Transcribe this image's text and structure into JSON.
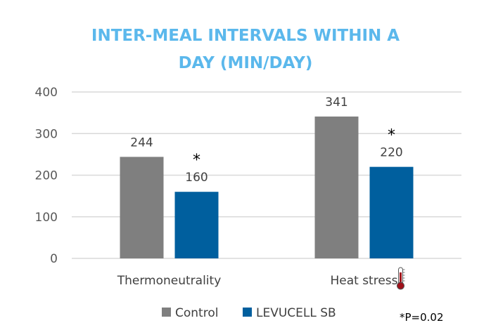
{
  "chart_data": {
    "type": "bar",
    "title_lines": [
      "INTER-MEAL INTERVALS WITHIN A",
      "DAY (MIN/DAY)"
    ],
    "categories": [
      "Thermoneutrality",
      "Heat stress"
    ],
    "series": [
      {
        "name": "Control",
        "values": [
          244,
          341
        ],
        "color": "#7f7f7f"
      },
      {
        "name": "LEVUCELL SB",
        "values": [
          160,
          220
        ],
        "color": "#005f9e"
      }
    ],
    "data_labels": [
      [
        "244",
        "341"
      ],
      [
        "160",
        "220"
      ]
    ],
    "significance": [
      [
        "",
        ""
      ],
      [
        "*",
        "*"
      ]
    ],
    "yticks": [
      0,
      100,
      200,
      300,
      400
    ],
    "ylim": [
      0,
      400
    ],
    "grid": true,
    "legend_position": "bottom",
    "annotation": "*P=0.02",
    "category_icons": [
      "",
      "thermometer"
    ],
    "title_color": "#5bb8ec"
  }
}
